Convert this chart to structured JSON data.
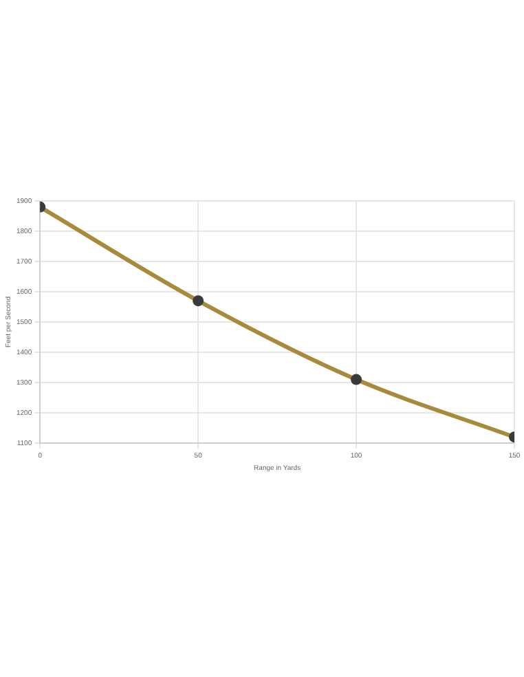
{
  "chart_data": {
    "type": "line",
    "xlabel": "Range in Yards",
    "ylabel": "Feet per Second",
    "x": [
      0,
      50,
      100,
      150
    ],
    "series": [
      {
        "color": "#a88a3c",
        "values": [
          1880,
          1570,
          1310,
          1120
        ]
      }
    ],
    "xlim": [
      0,
      150
    ],
    "xticks": [
      0,
      50,
      100,
      150
    ],
    "ylim": [
      1100,
      1900
    ],
    "yticks": [
      1100,
      1200,
      1300,
      1400,
      1500,
      1600,
      1700,
      1800,
      1900
    ],
    "grid": true,
    "legend": false,
    "marker": "circle",
    "line_style": "solid"
  }
}
